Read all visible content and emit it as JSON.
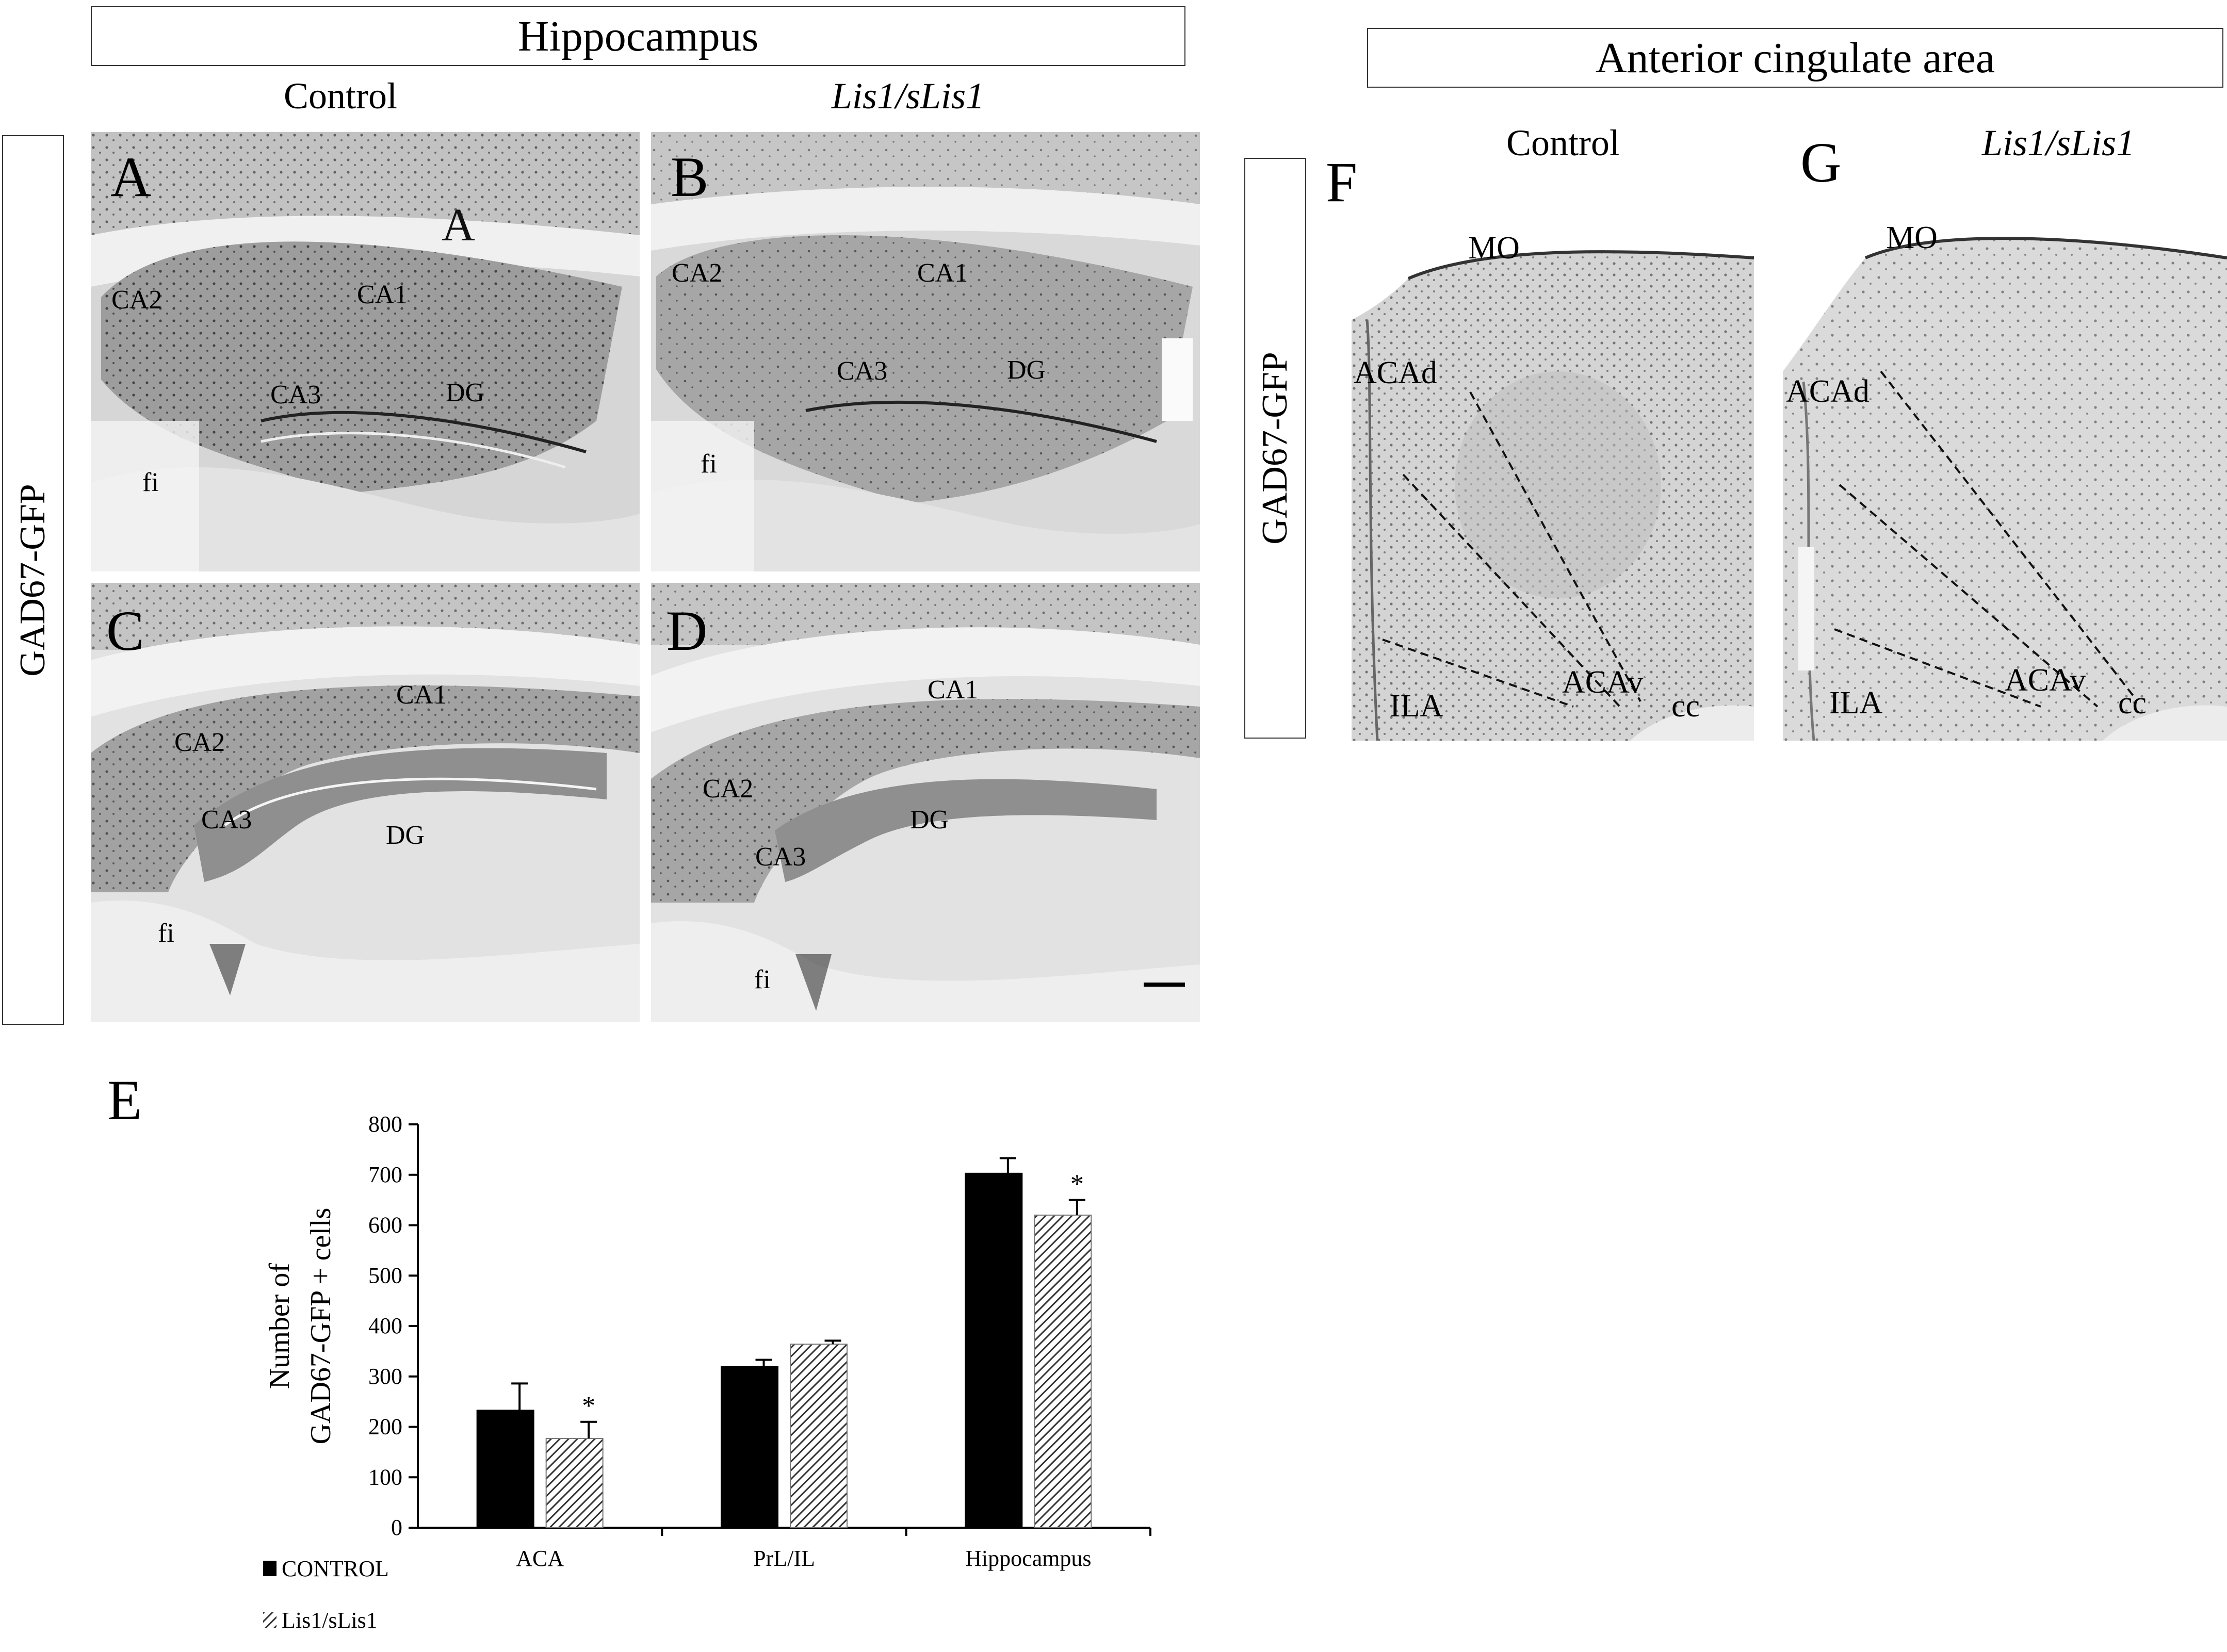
{
  "hippocampus": {
    "title": "Hippocampus",
    "col_control": "Control",
    "col_mutant": "Lis1/sLis1",
    "side_label": "GAD67-GFP",
    "panels": [
      {
        "letter": "A",
        "labels": {
          "ca2": "CA2",
          "ca1": "CA1",
          "ca3": "CA3",
          "dg": "DG",
          "fi": "fi"
        }
      },
      {
        "letter": "B",
        "labels": {
          "ca2": "CA2",
          "ca1": "CA1",
          "ca3": "CA3",
          "dg": "DG",
          "fi": "fi"
        }
      },
      {
        "letter": "C",
        "labels": {
          "ca2": "CA2",
          "ca1": "CA1",
          "ca3": "CA3",
          "dg": "DG",
          "fi": "fi"
        }
      },
      {
        "letter": "D",
        "labels": {
          "ca2": "CA2",
          "ca1": "CA1",
          "ca3": "CA3",
          "dg": "DG",
          "fi": "fi"
        }
      }
    ]
  },
  "cingulate": {
    "title": "Anterior cingulate area",
    "col_control": "Control",
    "col_mutant": "Lis1/sLis1",
    "side_label": "GAD67-GFP",
    "panels": [
      {
        "letter": "F",
        "labels": {
          "mo": "MO",
          "acad": "ACAd",
          "acav": "ACAv",
          "ila": "ILA",
          "cc": "cc"
        }
      },
      {
        "letter": "G",
        "labels": {
          "mo": "MO",
          "acad": "ACAd",
          "acav": "ACAv",
          "ila": "ILA",
          "cc": "cc"
        }
      }
    ]
  },
  "chart_panel": {
    "letter": "E"
  },
  "chart_data": {
    "type": "bar",
    "categories": [
      "ACA",
      "PrL/IL",
      "Hippocampus"
    ],
    "series": [
      {
        "name": "CONTROL",
        "values": [
          233,
          320,
          703
        ],
        "errors": [
          53,
          13,
          30
        ],
        "color": "#000000"
      },
      {
        "name": "Lis1/sLis1",
        "values": [
          177,
          364,
          620
        ],
        "errors": [
          33,
          7,
          30
        ],
        "color": "#555555",
        "pattern": "hatched"
      }
    ],
    "significance": [
      "*",
      "",
      "*"
    ],
    "ylabel_line1": "Number of",
    "ylabel_line2": "GAD67-GFP + cells",
    "ylim": [
      0,
      800
    ],
    "yticks": [
      0,
      100,
      200,
      300,
      400,
      500,
      600,
      700,
      800
    ],
    "legend_position": "bottom-left"
  }
}
